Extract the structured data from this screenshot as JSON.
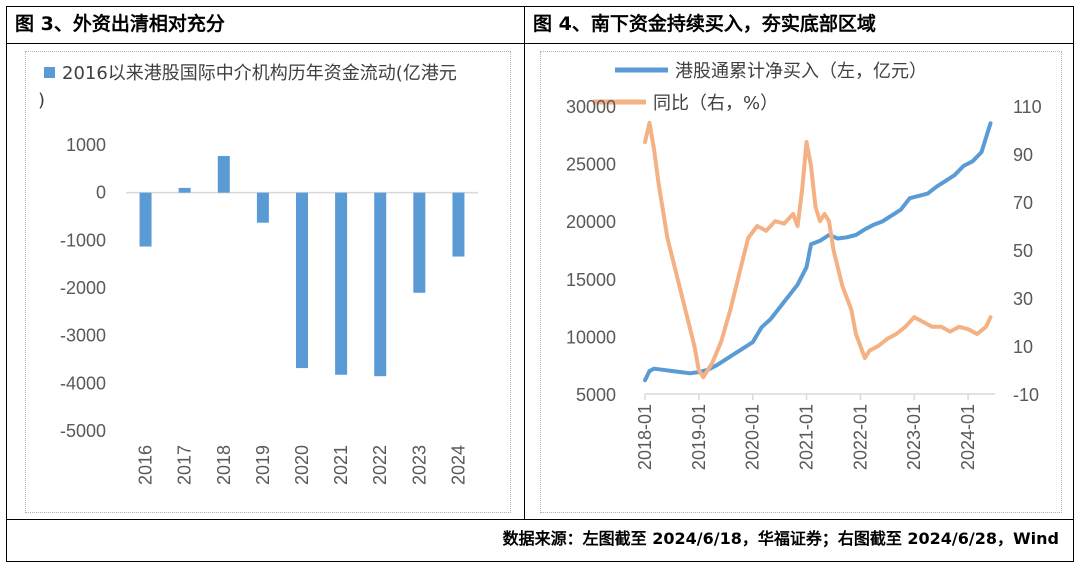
{
  "panels": {
    "left": {
      "title": "图 3、外资出清相对充分"
    },
    "right": {
      "title": "图 4、南下资金持续买入，夯实底部区域"
    }
  },
  "source_note": "数据来源：左图截至 2024/6/18，华福证券；右图截至 2024/6/28，Wind",
  "colors": {
    "bar": "#5b9bd5",
    "line_blue": "#5b9bd5",
    "line_orange": "#f4b183",
    "axis": "#d9d9d9",
    "tick": "#595959"
  },
  "chart_data": [
    {
      "type": "bar",
      "legend_label": "2016以来港股国际中介机构历年资金流动(亿港元)",
      "series": [
        {
          "name": "2016以来港股国际中介机构历年资金流动(亿港元)",
          "values": [
            -1130,
            100,
            770,
            -630,
            -3680,
            -3820,
            -3850,
            -2100,
            -1340
          ]
        }
      ],
      "categories": [
        "2016",
        "2017",
        "2018",
        "2019",
        "2020",
        "2021",
        "2022",
        "2023",
        "2024"
      ],
      "values": [
        -1130,
        100,
        770,
        -630,
        -3680,
        -3820,
        -3850,
        -2100,
        -1340
      ],
      "ylim": [
        -5000,
        1000
      ],
      "yticks": [
        "1000",
        "0",
        "-1000",
        "-2000",
        "-3000",
        "-4000",
        "-5000"
      ],
      "ytick_values": [
        1000,
        0,
        -1000,
        -2000,
        -3000,
        -4000,
        -5000
      ],
      "grid": false,
      "legend_position": "top-left"
    },
    {
      "type": "line",
      "xticks": [
        "2018-01",
        "2019-01",
        "2020-01",
        "2021-01",
        "2022-01",
        "2023-01",
        "2024-01"
      ],
      "y_left": {
        "ylim": [
          5000,
          30000
        ],
        "ticks": [
          "30000",
          "25000",
          "20000",
          "15000",
          "10000",
          "5000"
        ],
        "tick_values": [
          30000,
          25000,
          20000,
          15000,
          10000,
          5000
        ]
      },
      "y_right": {
        "ylim": [
          -10,
          110
        ],
        "ticks": [
          "110",
          "90",
          "70",
          "50",
          "30",
          "10",
          "-10"
        ],
        "tick_values": [
          110,
          90,
          70,
          50,
          30,
          10,
          -10
        ]
      },
      "grid": false,
      "legend_position": "top",
      "series": [
        {
          "name": "港股通累计净买入（左，亿元）",
          "axis": "left",
          "color": "#5b9bd5",
          "x": [
            "2018-01",
            "2018-02",
            "2018-03",
            "2018-05",
            "2018-07",
            "2018-09",
            "2018-11",
            "2019-01",
            "2019-03",
            "2019-05",
            "2019-07",
            "2019-09",
            "2019-11",
            "2020-01",
            "2020-03",
            "2020-05",
            "2020-07",
            "2020-09",
            "2020-11",
            "2021-01",
            "2021-02",
            "2021-04",
            "2021-06",
            "2021-08",
            "2021-10",
            "2021-12",
            "2022-02",
            "2022-04",
            "2022-06",
            "2022-08",
            "2022-10",
            "2022-12",
            "2023-02",
            "2023-04",
            "2023-06",
            "2023-08",
            "2023-10",
            "2023-12",
            "2024-02",
            "2024-04",
            "2024-06"
          ],
          "y": [
            6200,
            7000,
            7200,
            7100,
            7000,
            6900,
            6800,
            6900,
            7100,
            7500,
            8000,
            8500,
            9000,
            9500,
            10800,
            11500,
            12500,
            13500,
            14500,
            16000,
            18000,
            18300,
            18800,
            18500,
            18600,
            18800,
            19300,
            19700,
            20000,
            20500,
            21000,
            22000,
            22200,
            22400,
            23000,
            23500,
            24000,
            24800,
            25200,
            26000,
            28500
          ]
        },
        {
          "name": "同比（右，%）",
          "axis": "right",
          "color": "#f4b183",
          "x": [
            "2018-01",
            "2018-02",
            "2018-03",
            "2018-04",
            "2018-06",
            "2018-08",
            "2018-10",
            "2018-12",
            "2019-01",
            "2019-02",
            "2019-04",
            "2019-06",
            "2019-08",
            "2019-10",
            "2019-12",
            "2020-02",
            "2020-04",
            "2020-06",
            "2020-08",
            "2020-10",
            "2020-11",
            "2020-12",
            "2021-01",
            "2021-02",
            "2021-03",
            "2021-04",
            "2021-05",
            "2021-06",
            "2021-07",
            "2021-09",
            "2021-11",
            "2021-12",
            "2022-01",
            "2022-02",
            "2022-03",
            "2022-05",
            "2022-07",
            "2022-09",
            "2022-11",
            "2023-01",
            "2023-03",
            "2023-05",
            "2023-07",
            "2023-09",
            "2023-11",
            "2024-01",
            "2024-03",
            "2024-05",
            "2024-06"
          ],
          "y": [
            95,
            103,
            92,
            78,
            55,
            40,
            25,
            10,
            0,
            -3,
            3,
            12,
            25,
            40,
            55,
            60,
            58,
            62,
            61,
            65,
            60,
            75,
            95,
            85,
            68,
            62,
            65,
            62,
            50,
            35,
            25,
            15,
            10,
            5,
            8,
            10,
            13,
            15,
            18,
            22,
            20,
            18,
            18,
            16,
            18,
            17,
            15,
            18,
            22
          ]
        }
      ]
    }
  ]
}
